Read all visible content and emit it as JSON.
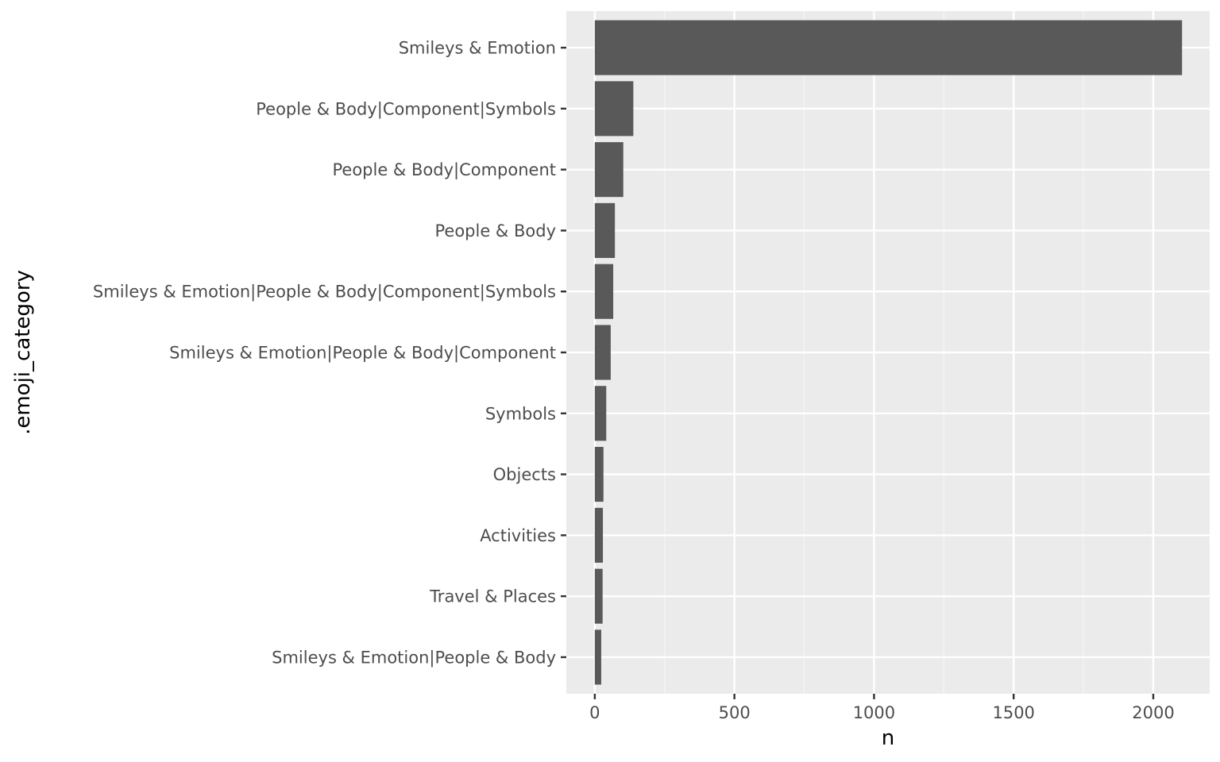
{
  "chart_data": {
    "type": "bar",
    "orientation": "horizontal",
    "title": "",
    "xlabel": "n",
    "ylabel": ".emoji_category",
    "xlim": [
      -102,
      2202
    ],
    "xticks": [
      0,
      500,
      1000,
      1500,
      2000
    ],
    "grid": true,
    "legend": "none",
    "categories": [
      "Smileys & Emotion",
      "People & Body|Component|Symbols",
      "People & Body|Component",
      "People & Body",
      "Smileys & Emotion|People & Body|Component|Symbols",
      "Smileys & Emotion|People & Body|Component",
      "Symbols",
      "Objects",
      "Activities",
      "Travel & Places",
      "Smileys & Emotion|People & Body"
    ],
    "values": [
      2103,
      138,
      102,
      72,
      66,
      57,
      41,
      31,
      29,
      28,
      23
    ],
    "colors": {
      "bar": "#595959",
      "panel": "#ebebeb",
      "grid_major": "#ffffff",
      "grid_minor": "#f5f5f5",
      "tick": "#333333",
      "tick_label": "#4d4d4d",
      "axis_title": "#000000"
    }
  }
}
